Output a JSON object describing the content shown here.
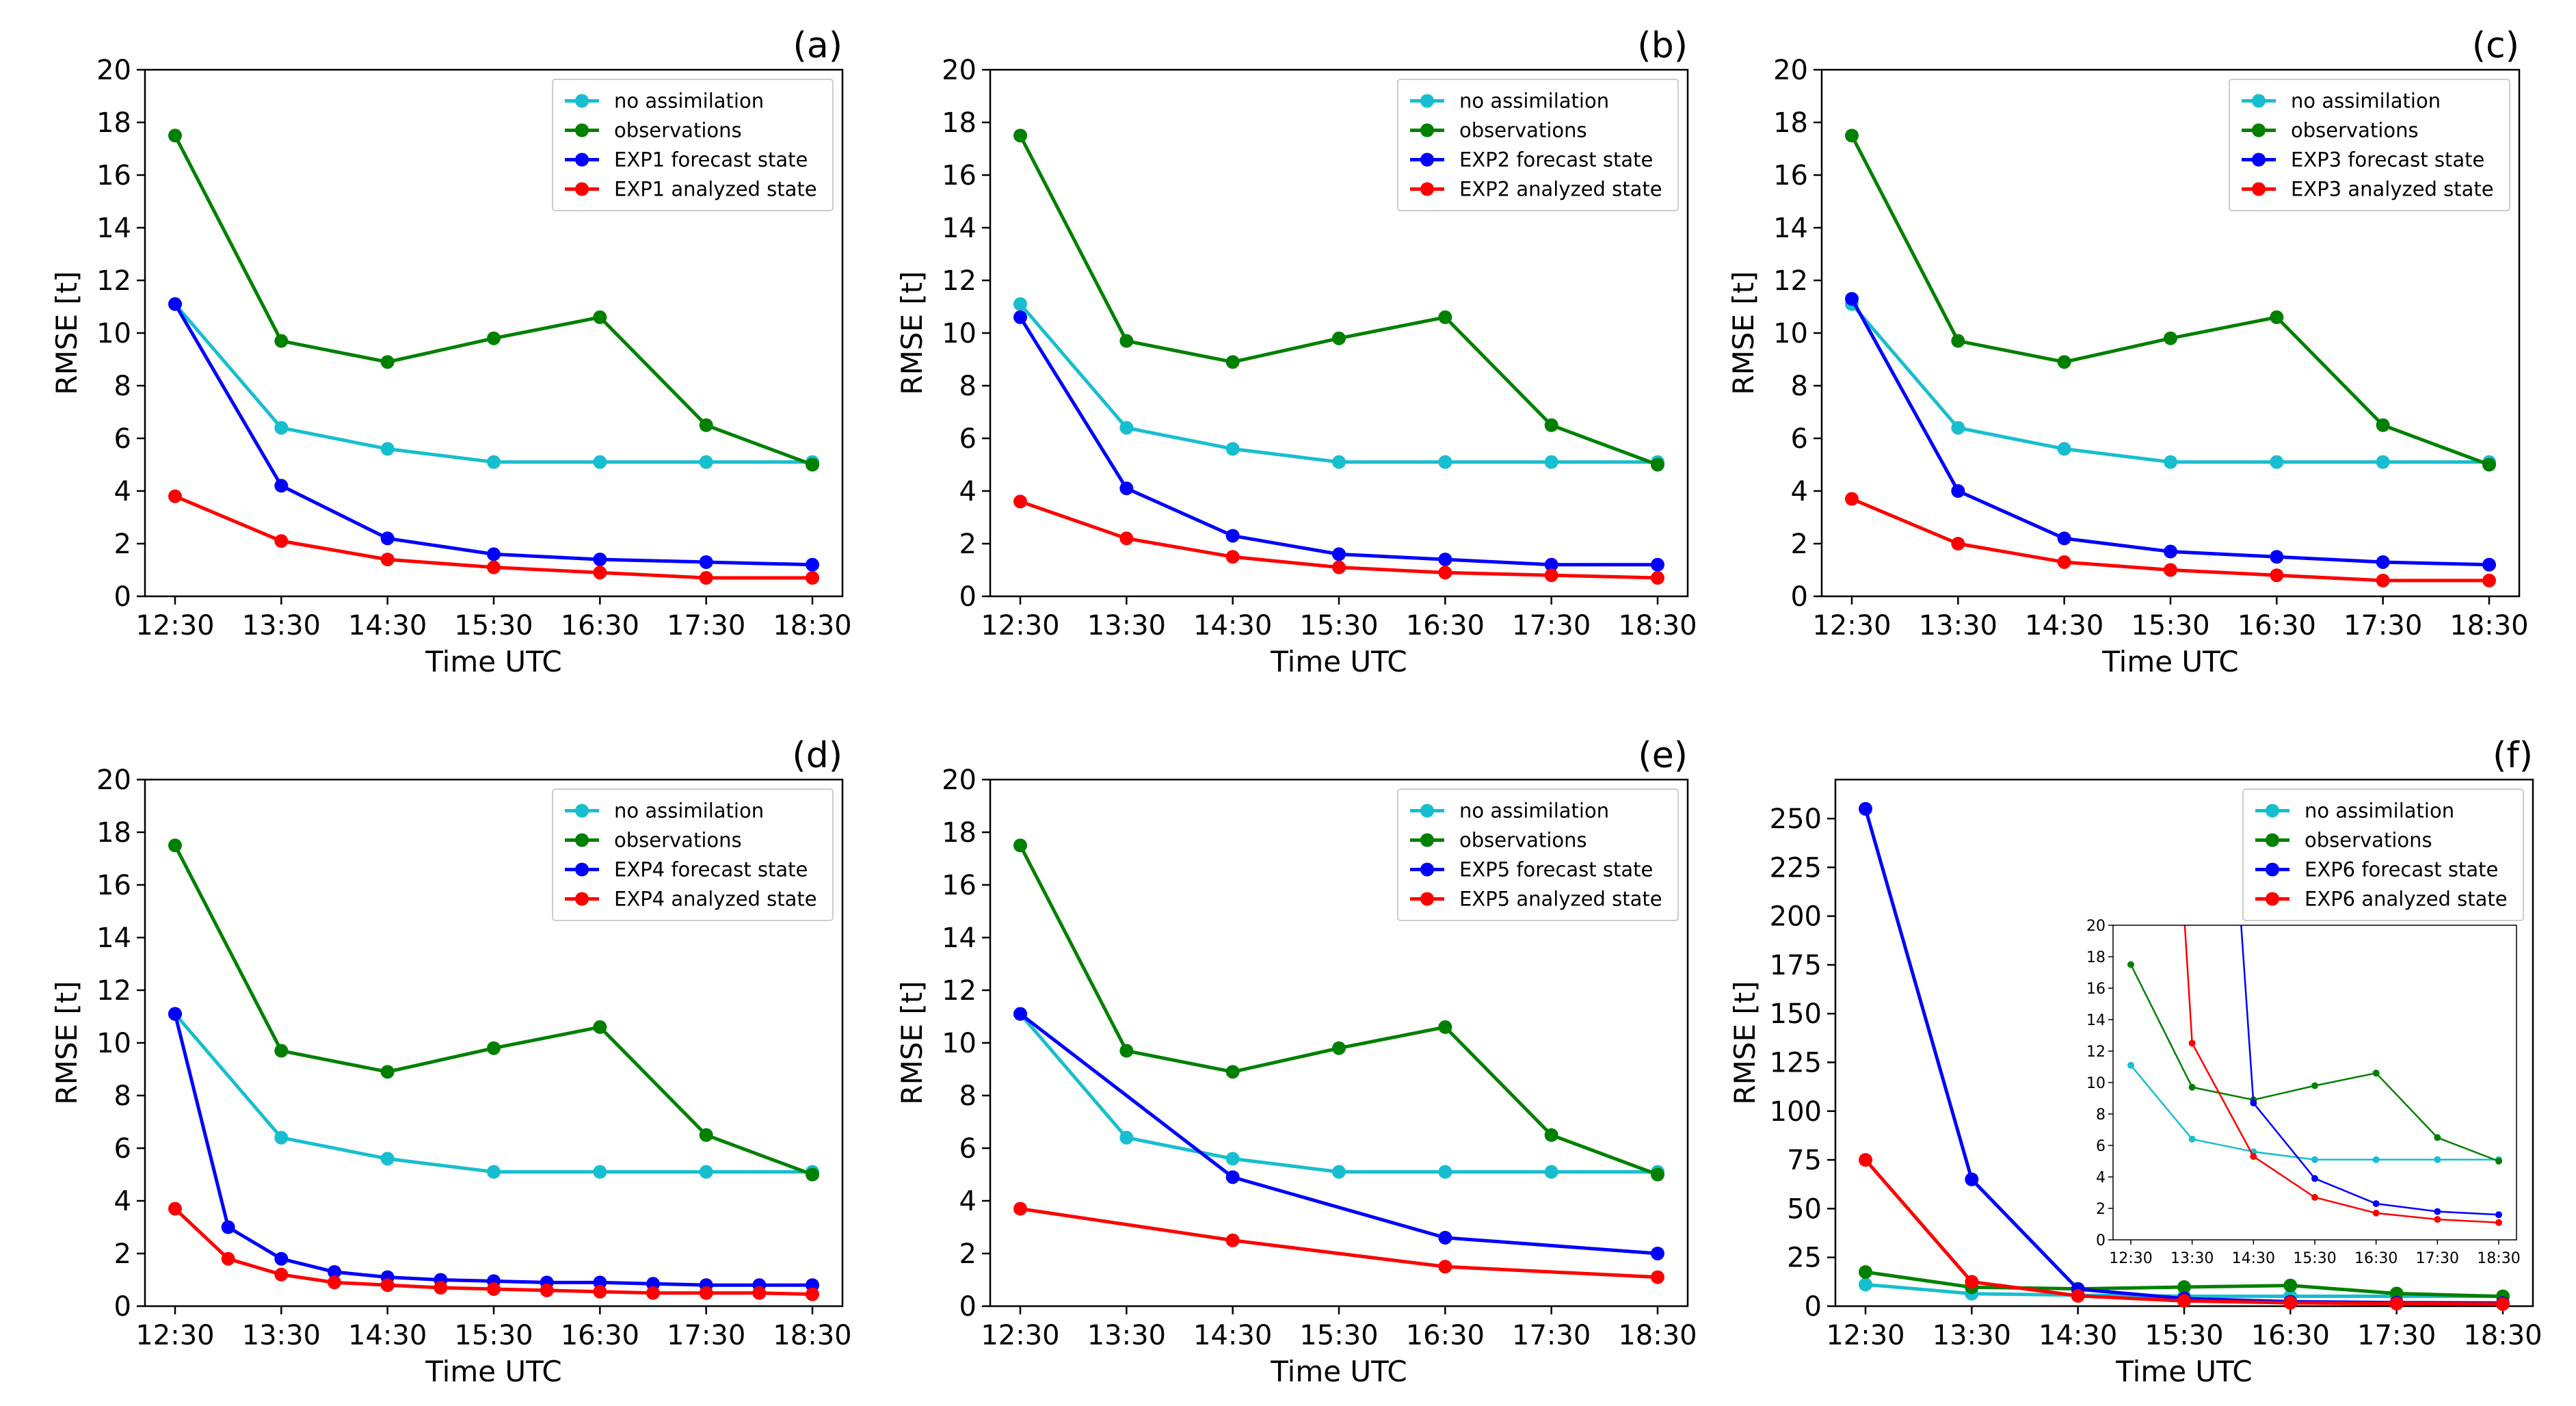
{
  "figure": {
    "xlabel": "Time UTC",
    "ylabel": "RMSE [t]",
    "time_ticks": [
      "12:30",
      "13:30",
      "14:30",
      "15:30",
      "16:30",
      "17:30",
      "18:30"
    ]
  },
  "colors": {
    "no_assimilation": "#17becf",
    "observations": "#008000",
    "forecast": "#0000ff",
    "analyzed": "#ff0000"
  },
  "chart_data": [
    {
      "type": "line",
      "panel": "(a)",
      "title": "",
      "xlabel": "Time UTC",
      "ylabel": "RMSE [t]",
      "xlim": [
        12.5,
        18.5
      ],
      "ylim": [
        0,
        20
      ],
      "yticks": [
        0,
        2,
        4,
        6,
        8,
        10,
        12,
        14,
        16,
        18,
        20
      ],
      "legend": "top-right",
      "series": [
        {
          "name": "no assimilation",
          "color": "#17becf",
          "x": [
            12.5,
            13.5,
            14.5,
            15.5,
            16.5,
            17.5,
            18.5
          ],
          "y": [
            11.1,
            6.4,
            5.6,
            5.1,
            5.1,
            5.1,
            5.1
          ]
        },
        {
          "name": "observations",
          "color": "#008000",
          "x": [
            12.5,
            13.5,
            14.5,
            15.5,
            16.5,
            17.5,
            18.5
          ],
          "y": [
            17.5,
            9.7,
            8.9,
            9.8,
            10.6,
            6.5,
            5.0
          ]
        },
        {
          "name": "EXP1 forecast state",
          "color": "#0000ff",
          "x": [
            12.5,
            13.5,
            14.5,
            15.5,
            16.5,
            17.5,
            18.5
          ],
          "y": [
            11.1,
            4.2,
            2.2,
            1.6,
            1.4,
            1.3,
            1.2
          ]
        },
        {
          "name": "EXP1 analyzed state",
          "color": "#ff0000",
          "x": [
            12.5,
            13.5,
            14.5,
            15.5,
            16.5,
            17.5,
            18.5
          ],
          "y": [
            3.8,
            2.1,
            1.4,
            1.1,
            0.9,
            0.7,
            0.7
          ]
        }
      ]
    },
    {
      "type": "line",
      "panel": "(b)",
      "title": "",
      "xlabel": "Time UTC",
      "ylabel": "RMSE [t]",
      "xlim": [
        12.5,
        18.5
      ],
      "ylim": [
        0,
        20
      ],
      "yticks": [
        0,
        2,
        4,
        6,
        8,
        10,
        12,
        14,
        16,
        18,
        20
      ],
      "legend": "top-right",
      "series": [
        {
          "name": "no assimilation",
          "color": "#17becf",
          "x": [
            12.5,
            13.5,
            14.5,
            15.5,
            16.5,
            17.5,
            18.5
          ],
          "y": [
            11.1,
            6.4,
            5.6,
            5.1,
            5.1,
            5.1,
            5.1
          ]
        },
        {
          "name": "observations",
          "color": "#008000",
          "x": [
            12.5,
            13.5,
            14.5,
            15.5,
            16.5,
            17.5,
            18.5
          ],
          "y": [
            17.5,
            9.7,
            8.9,
            9.8,
            10.6,
            6.5,
            5.0
          ]
        },
        {
          "name": "EXP2 forecast state",
          "color": "#0000ff",
          "x": [
            12.5,
            13.5,
            14.5,
            15.5,
            16.5,
            17.5,
            18.5
          ],
          "y": [
            10.6,
            4.1,
            2.3,
            1.6,
            1.4,
            1.2,
            1.2
          ]
        },
        {
          "name": "EXP2 analyzed state",
          "color": "#ff0000",
          "x": [
            12.5,
            13.5,
            14.5,
            15.5,
            16.5,
            17.5,
            18.5
          ],
          "y": [
            3.6,
            2.2,
            1.5,
            1.1,
            0.9,
            0.8,
            0.7
          ]
        }
      ]
    },
    {
      "type": "line",
      "panel": "(c)",
      "title": "",
      "xlabel": "Time UTC",
      "ylabel": "RMSE [t]",
      "xlim": [
        12.5,
        18.5
      ],
      "ylim": [
        0,
        20
      ],
      "yticks": [
        0,
        2,
        4,
        6,
        8,
        10,
        12,
        14,
        16,
        18,
        20
      ],
      "legend": "top-right",
      "series": [
        {
          "name": "no assimilation",
          "color": "#17becf",
          "x": [
            12.5,
            13.5,
            14.5,
            15.5,
            16.5,
            17.5,
            18.5
          ],
          "y": [
            11.1,
            6.4,
            5.6,
            5.1,
            5.1,
            5.1,
            5.1
          ]
        },
        {
          "name": "observations",
          "color": "#008000",
          "x": [
            12.5,
            13.5,
            14.5,
            15.5,
            16.5,
            17.5,
            18.5
          ],
          "y": [
            17.5,
            9.7,
            8.9,
            9.8,
            10.6,
            6.5,
            5.0
          ]
        },
        {
          "name": "EXP3 forecast state",
          "color": "#0000ff",
          "x": [
            12.5,
            13.5,
            14.5,
            15.5,
            16.5,
            17.5,
            18.5
          ],
          "y": [
            11.3,
            4.0,
            2.2,
            1.7,
            1.5,
            1.3,
            1.2
          ]
        },
        {
          "name": "EXP3 analyzed state",
          "color": "#ff0000",
          "x": [
            12.5,
            13.5,
            14.5,
            15.5,
            16.5,
            17.5,
            18.5
          ],
          "y": [
            3.7,
            2.0,
            1.3,
            1.0,
            0.8,
            0.6,
            0.6
          ]
        }
      ]
    },
    {
      "type": "line",
      "panel": "(d)",
      "title": "",
      "xlabel": "Time UTC",
      "ylabel": "RMSE [t]",
      "xlim": [
        12.5,
        18.5
      ],
      "ylim": [
        0,
        20
      ],
      "yticks": [
        0,
        2,
        4,
        6,
        8,
        10,
        12,
        14,
        16,
        18,
        20
      ],
      "legend": "top-right",
      "series": [
        {
          "name": "no assimilation",
          "color": "#17becf",
          "x": [
            12.5,
            13.5,
            14.5,
            15.5,
            16.5,
            17.5,
            18.5
          ],
          "y": [
            11.1,
            6.4,
            5.6,
            5.1,
            5.1,
            5.1,
            5.1
          ]
        },
        {
          "name": "observations",
          "color": "#008000",
          "x": [
            12.5,
            13.5,
            14.5,
            15.5,
            16.5,
            17.5,
            18.5
          ],
          "y": [
            17.5,
            9.7,
            8.9,
            9.8,
            10.6,
            6.5,
            5.0
          ]
        },
        {
          "name": "EXP4 forecast state",
          "color": "#0000ff",
          "x": [
            12.5,
            12.5,
            13.0,
            13.5,
            14.0,
            14.5,
            15.0,
            15.5,
            16.0,
            16.5,
            17.0,
            17.5,
            18.0,
            18.5
          ],
          "y": [
            11.1,
            11.1,
            3.0,
            1.8,
            1.3,
            1.1,
            1.0,
            0.95,
            0.9,
            0.9,
            0.85,
            0.8,
            0.8,
            0.8
          ]
        },
        {
          "name": "EXP4 analyzed state",
          "color": "#ff0000",
          "x": [
            12.5,
            13.0,
            13.5,
            14.0,
            14.5,
            15.0,
            15.5,
            16.0,
            16.5,
            17.0,
            17.5,
            18.0,
            18.5
          ],
          "y": [
            3.7,
            1.8,
            1.2,
            0.9,
            0.8,
            0.7,
            0.65,
            0.6,
            0.55,
            0.5,
            0.5,
            0.5,
            0.45
          ]
        }
      ]
    },
    {
      "type": "line",
      "panel": "(e)",
      "title": "",
      "xlabel": "Time UTC",
      "ylabel": "RMSE [t]",
      "xlim": [
        12.5,
        18.5
      ],
      "ylim": [
        0,
        20
      ],
      "yticks": [
        0,
        2,
        4,
        6,
        8,
        10,
        12,
        14,
        16,
        18,
        20
      ],
      "legend": "top-right",
      "series": [
        {
          "name": "no assimilation",
          "color": "#17becf",
          "x": [
            12.5,
            13.5,
            14.5,
            15.5,
            16.5,
            17.5,
            18.5
          ],
          "y": [
            11.1,
            6.4,
            5.6,
            5.1,
            5.1,
            5.1,
            5.1
          ]
        },
        {
          "name": "observations",
          "color": "#008000",
          "x": [
            12.5,
            13.5,
            14.5,
            15.5,
            16.5,
            17.5,
            18.5
          ],
          "y": [
            17.5,
            9.7,
            8.9,
            9.8,
            10.6,
            6.5,
            5.0
          ]
        },
        {
          "name": "EXP5 forecast state",
          "color": "#0000ff",
          "x": [
            12.5,
            14.5,
            16.5,
            18.5
          ],
          "y": [
            11.1,
            4.9,
            2.6,
            2.0
          ]
        },
        {
          "name": "EXP5 analyzed state",
          "color": "#ff0000",
          "x": [
            12.5,
            14.5,
            16.5,
            18.5
          ],
          "y": [
            3.7,
            2.5,
            1.5,
            1.1
          ]
        }
      ]
    },
    {
      "type": "line",
      "panel": "(f)",
      "title": "",
      "xlabel": "Time UTC",
      "ylabel": "RMSE [t]",
      "xlim": [
        12.5,
        18.5
      ],
      "ylim": [
        0,
        270
      ],
      "yticks": [
        0,
        25,
        50,
        75,
        100,
        125,
        150,
        175,
        200,
        225,
        250
      ],
      "legend": "top-right",
      "series": [
        {
          "name": "no assimilation",
          "color": "#17becf",
          "x": [
            12.5,
            13.5,
            14.5,
            15.5,
            16.5,
            17.5,
            18.5
          ],
          "y": [
            11.1,
            6.4,
            5.6,
            5.1,
            5.1,
            5.1,
            5.1
          ]
        },
        {
          "name": "observations",
          "color": "#008000",
          "x": [
            12.5,
            13.5,
            14.5,
            15.5,
            16.5,
            17.5,
            18.5
          ],
          "y": [
            17.5,
            9.7,
            8.9,
            9.8,
            10.6,
            6.5,
            5.0
          ]
        },
        {
          "name": "EXP6 forecast state",
          "color": "#0000ff",
          "x": [
            12.5,
            13.5,
            14.5,
            15.5,
            16.5,
            17.5,
            18.5
          ],
          "y": [
            255,
            65,
            8.7,
            3.9,
            2.3,
            1.8,
            1.6
          ]
        },
        {
          "name": "EXP6 analyzed state",
          "color": "#ff0000",
          "x": [
            12.5,
            13.5,
            14.5,
            15.5,
            16.5,
            17.5,
            18.5
          ],
          "y": [
            75,
            12.5,
            5.3,
            2.7,
            1.7,
            1.3,
            1.1
          ]
        }
      ],
      "inset": {
        "ylim": [
          0,
          20
        ],
        "yticks": [
          0,
          2,
          4,
          6,
          8,
          10,
          12,
          14,
          16,
          18,
          20
        ],
        "xticks": [
          "12:30",
          "13:30",
          "14:30",
          "15:30",
          "16:30",
          "17:30",
          "18:30"
        ]
      }
    }
  ]
}
